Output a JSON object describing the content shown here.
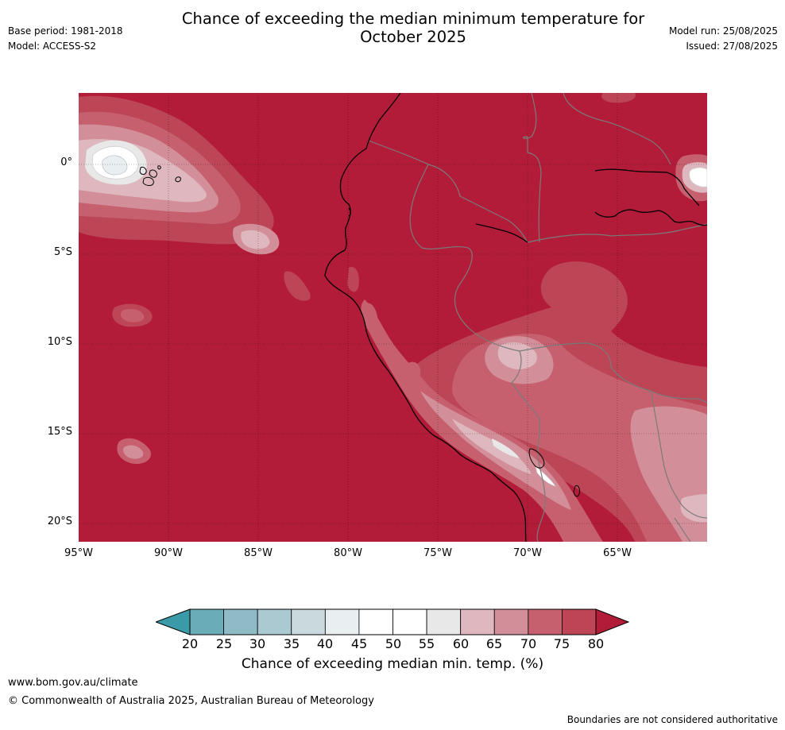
{
  "header": {
    "title_line1": "Chance of exceeding the median minimum temperature for",
    "title_line2": "October 2025",
    "base_period": "Base period: 1981-2018",
    "model": "Model: ACCESS-S2",
    "model_run": "Model run: 25/08/2025",
    "issued": "Issued: 27/08/2025"
  },
  "map": {
    "region": "South America (Peru, Ecuador, western Brazil, Bolivia) and eastern Pacific",
    "lat_labels": [
      "0°",
      "5°S",
      "10°S",
      "15°S",
      "20°S"
    ],
    "lon_labels": [
      "95°W",
      "90°W",
      "85°W",
      "80°W",
      "75°W",
      "70°W",
      "65°W"
    ],
    "background_class_color": "#b31c38"
  },
  "legend": {
    "ticks": [
      "20",
      "25",
      "30",
      "35",
      "40",
      "45",
      "50",
      "55",
      "60",
      "65",
      "70",
      "75",
      "80"
    ],
    "colors": [
      "#3b9aa8",
      "#6bacb9",
      "#8ebbc6",
      "#aac9d0",
      "#c9d9de",
      "#e9eef0",
      "#ffffff",
      "#ffffff",
      "#e8e8e8",
      "#deb8be",
      "#d38f99",
      "#c6606f",
      "#bc4655",
      "#b31c38"
    ],
    "label": "Chance of exceeding median min. temp. (%)"
  },
  "footer": {
    "website": "www.bom.gov.au/climate",
    "copyright": "© Commonwealth of Australia 2025, Australian Bureau of Meteorology",
    "disclaimer": "Boundaries are not considered authoritative"
  }
}
